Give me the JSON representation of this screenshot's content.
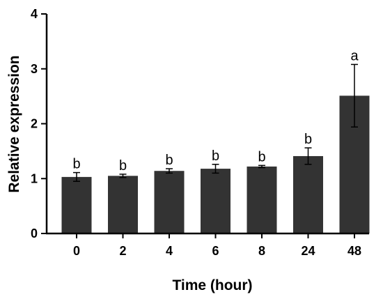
{
  "chart_data": {
    "type": "bar",
    "xlabel": "Time (hour)",
    "ylabel": "Relative expression",
    "categories": [
      "0",
      "2",
      "4",
      "6",
      "8",
      "24",
      "48"
    ],
    "values": [
      1.03,
      1.05,
      1.14,
      1.18,
      1.22,
      1.41,
      2.51
    ],
    "errors": [
      0.08,
      0.03,
      0.04,
      0.08,
      0.02,
      0.15,
      0.57
    ],
    "significance": [
      "b",
      "b",
      "b",
      "b",
      "b",
      "b",
      "a"
    ],
    "ylim": [
      0,
      4
    ],
    "yticks": [
      "0",
      "1",
      "2",
      "3",
      "4"
    ],
    "grid": false,
    "legend": "none",
    "bar_color": "#333333"
  }
}
